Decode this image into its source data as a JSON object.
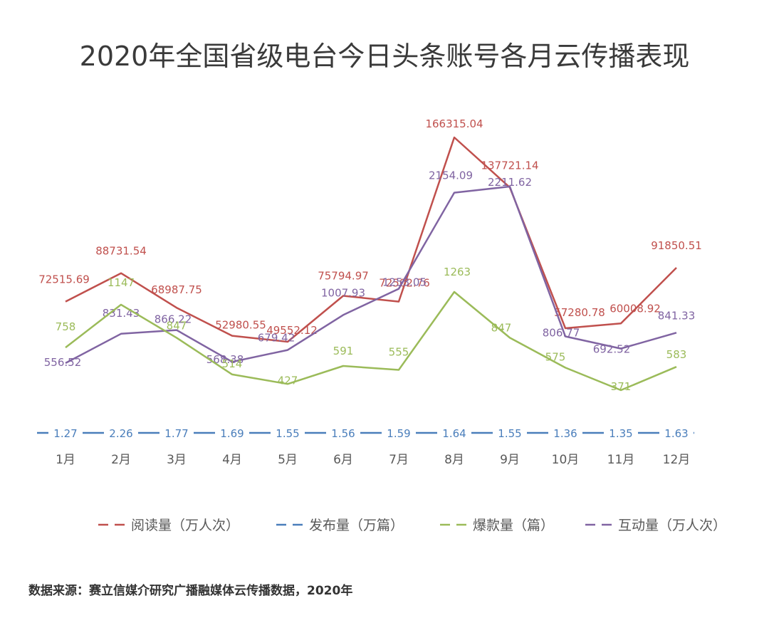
{
  "title": "2020年全国省级电台今日头条账号各月云传播表现",
  "source": "数据来源：赛立信媒介研究广播融媒体云传播数据，2020年",
  "chart_data": {
    "type": "line",
    "title": "2020年全国省级电台今日头条账号各月云传播表现",
    "categories": [
      "1月",
      "2月",
      "3月",
      "4月",
      "5月",
      "6月",
      "7月",
      "8月",
      "9月",
      "10月",
      "11月",
      "12月"
    ],
    "legend_position": "bottom",
    "grid": false,
    "series": [
      {
        "name": "阅读量（万人次）",
        "color": "#c0504d",
        "values": [
          72515.69,
          88731.54,
          68987.75,
          52980.55,
          49552.12,
          75794.97,
          72502.76,
          166315.04,
          137721.14,
          57280.78,
          60008.92,
          91850.51
        ],
        "labels": [
          "72515.69",
          "88731.54",
          "68987.75",
          "52980.55",
          "49552.12",
          "75794.97",
          "72502.76",
          "166315.04",
          "137721.14",
          "57280.78",
          "60008.92",
          "91850.51"
        ]
      },
      {
        "name": "发布量（万篇）",
        "color": "#4a7ebb",
        "values": [
          1.27,
          2.26,
          1.77,
          1.69,
          1.55,
          1.56,
          1.59,
          1.64,
          1.55,
          1.36,
          1.35,
          1.63
        ],
        "labels": [
          "1.27",
          "2.26",
          "1.77",
          "1.69",
          "1.55",
          "1.56",
          "1.59",
          "1.64",
          "1.55",
          "1.36",
          "1.35",
          "1.63"
        ]
      },
      {
        "name": "爆款量（篇）",
        "color": "#9bbb59",
        "values": [
          758,
          1147,
          847,
          514,
          427,
          591,
          555,
          1263,
          847,
          575,
          371,
          583
        ],
        "labels": [
          "758",
          "1147",
          "847",
          "514",
          "427",
          "591",
          "555",
          "1263",
          "847",
          "575",
          "371",
          "583"
        ]
      },
      {
        "name": "互动量（万人次）",
        "color": "#8064a2",
        "values": [
          556.52,
          831.43,
          866.22,
          568.38,
          679.42,
          1007.93,
          1253.05,
          2154.09,
          2211.62,
          806.77,
          692.52,
          841.33
        ],
        "labels": [
          "556.52",
          "831.43",
          "866.22",
          "568.38",
          "679.42",
          "1007.93",
          "1253.05",
          "2154.09",
          "2211.62",
          "806.77",
          "692.52",
          "841.33"
        ]
      }
    ]
  }
}
